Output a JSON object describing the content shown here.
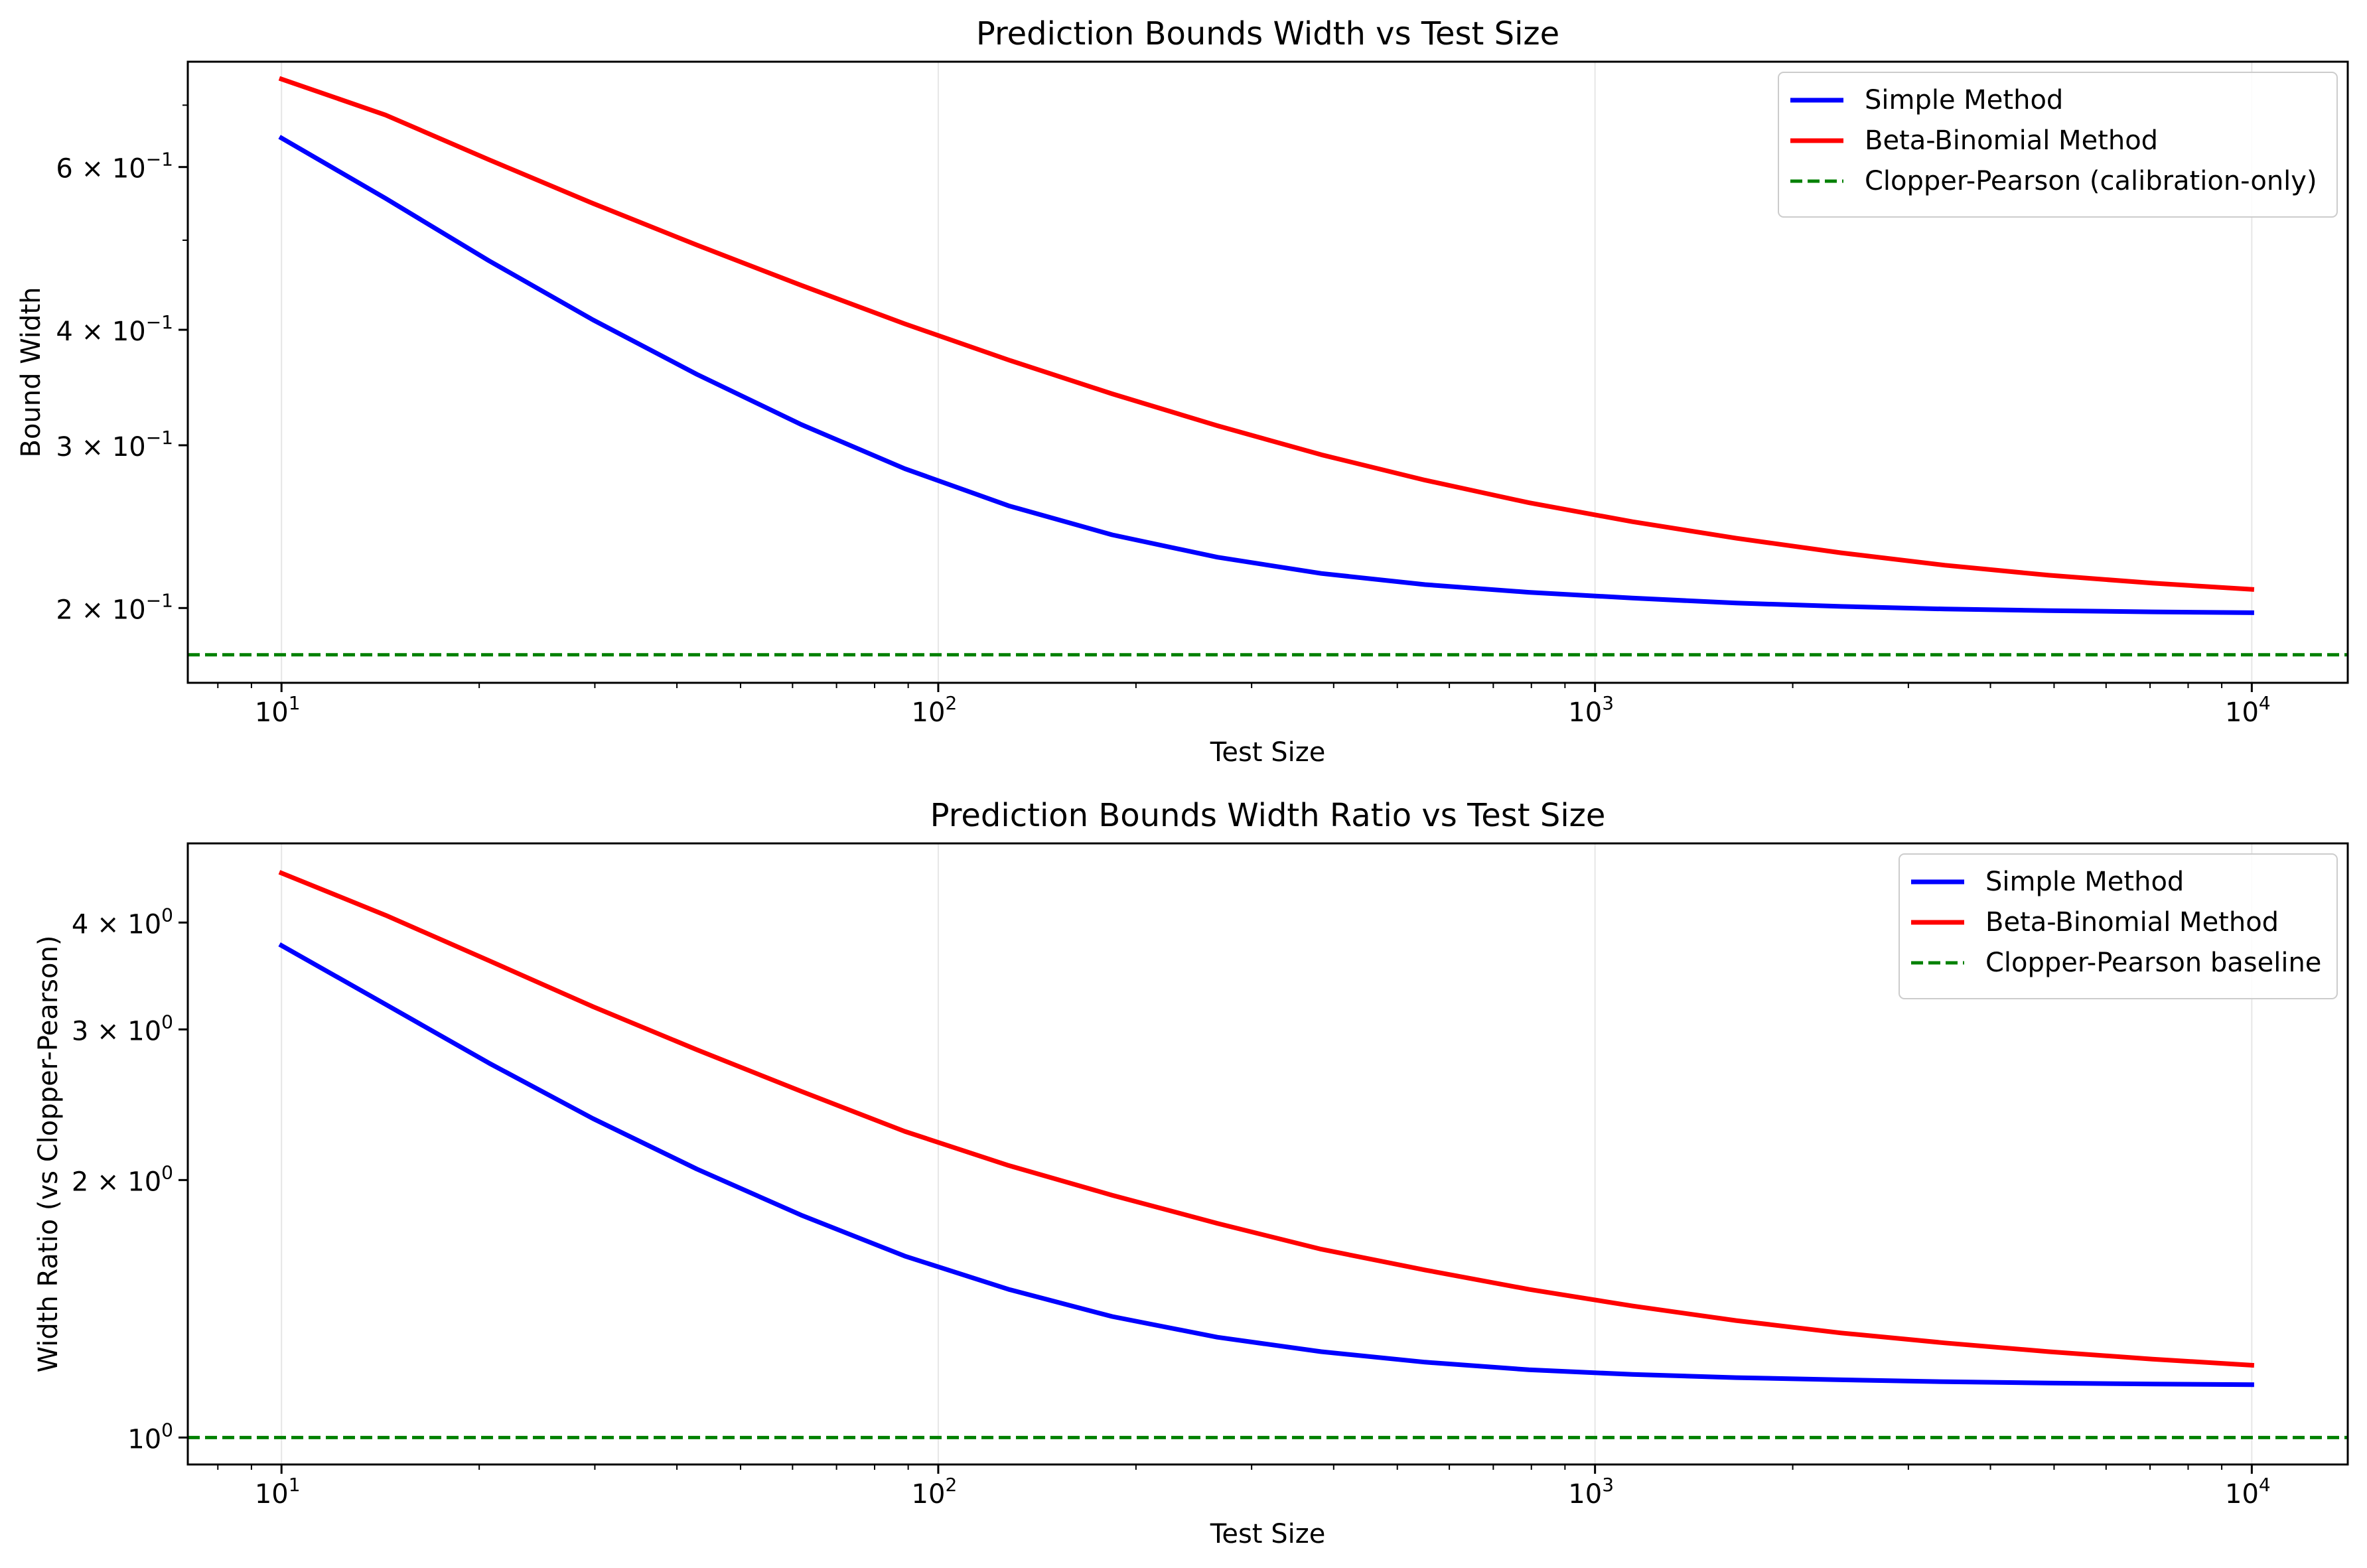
{
  "colors": {
    "simple": "#0000ff",
    "beta_binomial": "#ff0000",
    "clopper_pearson": "#008000",
    "grid": "#e6e6e6",
    "axes": "#000000"
  },
  "chart_data": [
    {
      "type": "line",
      "title": "Prediction Bounds Width vs Test Size",
      "xlabel": "Test Size",
      "ylabel": "Bound Width",
      "xscale": "log",
      "yscale": "log",
      "xlim": [
        7.2,
        14000
      ],
      "ylim": [
        0.166,
        0.78
      ],
      "grid": "x-major",
      "legend": "top-right",
      "x_ticks": [
        {
          "base": "10",
          "exp": "1",
          "value": 10
        },
        {
          "base": "10",
          "exp": "2",
          "value": 100
        },
        {
          "base": "10",
          "exp": "3",
          "value": 1000
        },
        {
          "base": "10",
          "exp": "4",
          "value": 10000
        }
      ],
      "y_ticks": [
        {
          "mant": "2",
          "base": "10",
          "exp": "−1",
          "value": 0.2
        },
        {
          "mant": "3",
          "base": "10",
          "exp": "−1",
          "value": 0.3
        },
        {
          "mant": "4",
          "base": "10",
          "exp": "−1",
          "value": 0.4
        },
        {
          "mant": "6",
          "base": "10",
          "exp": "−1",
          "value": 0.6
        }
      ],
      "series": [
        {
          "name": "Simple Method",
          "color_key": "simple",
          "dash": "solid",
          "x": [
            10,
            14.4,
            20.7,
            29.8,
            42.9,
            61.8,
            88.9,
            128,
            184,
            266,
            383,
            551,
            793,
            1140,
            1640,
            2370,
            3410,
            4910,
            7060,
            10000
          ],
          "y": [
            0.645,
            0.555,
            0.475,
            0.41,
            0.358,
            0.316,
            0.283,
            0.258,
            0.24,
            0.227,
            0.218,
            0.212,
            0.208,
            0.205,
            0.2025,
            0.2008,
            0.1995,
            0.1987,
            0.1981,
            0.1977
          ]
        },
        {
          "name": "Beta-Binomial Method",
          "color_key": "beta_binomial",
          "dash": "solid",
          "x": [
            10,
            14.4,
            20.7,
            29.8,
            42.9,
            61.8,
            88.9,
            128,
            184,
            266,
            383,
            551,
            793,
            1140,
            1640,
            2370,
            3410,
            4910,
            7060,
            10000
          ],
          "y": [
            0.747,
            0.683,
            0.611,
            0.548,
            0.494,
            0.447,
            0.406,
            0.371,
            0.341,
            0.315,
            0.293,
            0.275,
            0.26,
            0.248,
            0.238,
            0.2295,
            0.2225,
            0.217,
            0.2128,
            0.2095
          ]
        },
        {
          "name": "Clopper-Pearson (calibration-only)",
          "color_key": "clopper_pearson",
          "dash": "dashed",
          "hline": 0.178
        }
      ]
    },
    {
      "type": "line",
      "title": "Prediction Bounds Width Ratio vs Test Size",
      "xlabel": "Test Size",
      "ylabel": "Width Ratio (vs Clopper-Pearson)",
      "xscale": "log",
      "yscale": "log",
      "xlim": [
        7.2,
        14000
      ],
      "ylim": [
        0.93,
        4.95
      ],
      "grid": "x-major",
      "legend": "top-right",
      "x_ticks": [
        {
          "base": "10",
          "exp": "1",
          "value": 10
        },
        {
          "base": "10",
          "exp": "2",
          "value": 100
        },
        {
          "base": "10",
          "exp": "3",
          "value": 1000
        },
        {
          "base": "10",
          "exp": "4",
          "value": 10000
        }
      ],
      "y_ticks": [
        {
          "mant": "",
          "base": "10",
          "exp": "0",
          "value": 1
        },
        {
          "mant": "2",
          "base": "10",
          "exp": "0",
          "value": 2
        },
        {
          "mant": "3",
          "base": "10",
          "exp": "0",
          "value": 3
        },
        {
          "mant": "4",
          "base": "10",
          "exp": "0",
          "value": 4
        }
      ],
      "series": [
        {
          "name": "Simple Method",
          "color_key": "simple",
          "dash": "solid",
          "x": [
            10,
            14.4,
            20.7,
            29.8,
            42.9,
            61.8,
            88.9,
            128,
            184,
            266,
            383,
            551,
            793,
            1140,
            1640,
            2370,
            3410,
            4910,
            7060,
            10000
          ],
          "y": [
            3.76,
            3.21,
            2.74,
            2.36,
            2.06,
            1.82,
            1.63,
            1.49,
            1.385,
            1.31,
            1.26,
            1.225,
            1.2,
            1.185,
            1.175,
            1.168,
            1.162,
            1.158,
            1.155,
            1.153
          ]
        },
        {
          "name": "Beta-Binomial Method",
          "color_key": "beta_binomial",
          "dash": "solid",
          "x": [
            10,
            14.4,
            20.7,
            29.8,
            42.9,
            61.8,
            88.9,
            128,
            184,
            266,
            383,
            551,
            793,
            1140,
            1640,
            2370,
            3410,
            4910,
            7060,
            10000
          ],
          "y": [
            4.57,
            4.08,
            3.61,
            3.19,
            2.84,
            2.54,
            2.28,
            2.08,
            1.92,
            1.78,
            1.66,
            1.57,
            1.49,
            1.425,
            1.37,
            1.325,
            1.29,
            1.26,
            1.235,
            1.215
          ]
        },
        {
          "name": "Clopper-Pearson baseline",
          "color_key": "clopper_pearson",
          "dash": "dashed",
          "hline": 1.0
        }
      ]
    }
  ]
}
